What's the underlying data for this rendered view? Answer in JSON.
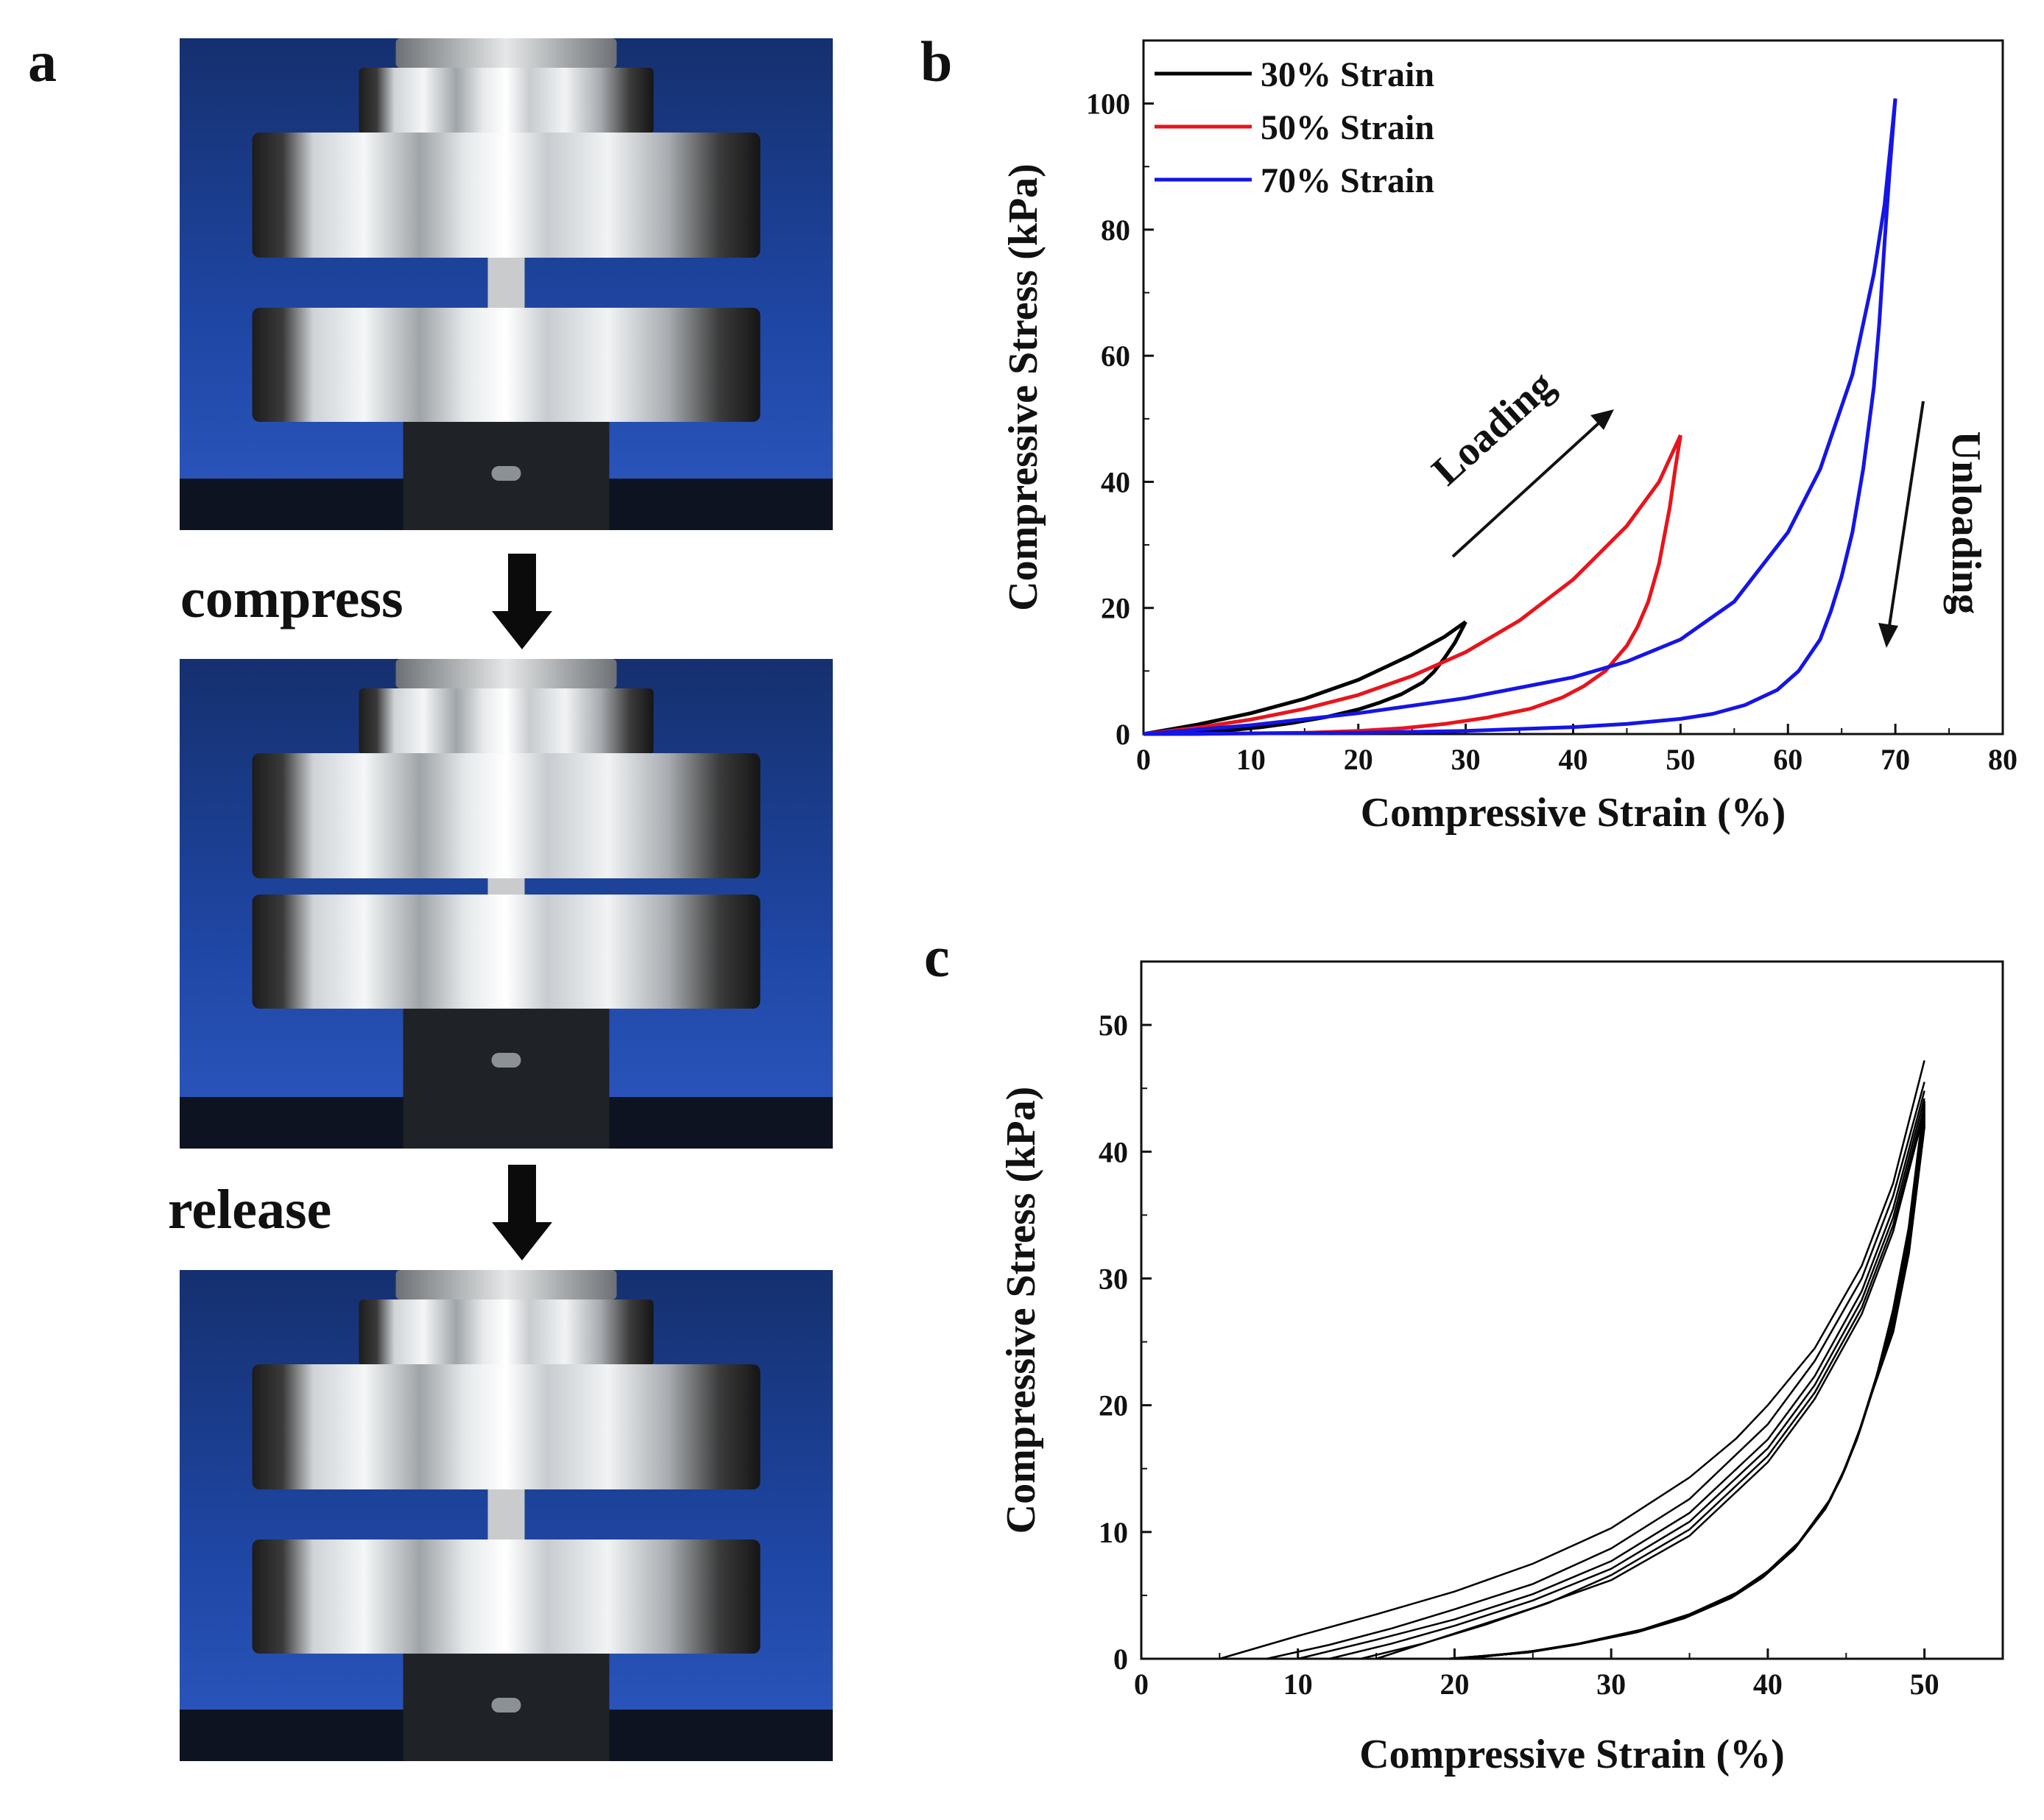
{
  "figure": {
    "panel_a": {
      "letter": "a",
      "step1_label": "compress",
      "step2_label": "release",
      "photos": [
        "initial-state-photo",
        "compressed-state-photo",
        "released-state-photo"
      ]
    },
    "panel_b": {
      "letter": "b"
    },
    "panel_c": {
      "letter": "c"
    }
  },
  "colors": {
    "photo_bg": "#1b3b86",
    "metal_light": "#e9ecef",
    "metal_dark": "#2b2b2b",
    "curve_30": "#000000",
    "curve_50": "#e8141c",
    "curve_70": "#1515e6",
    "cycle_curve": "#000000"
  },
  "chart_data": [
    {
      "id": "b",
      "type": "line",
      "xlabel": "Compressive Strain (%)",
      "ylabel": "Compressive Stress (kPa)",
      "xlim": [
        0,
        80
      ],
      "ylim": [
        0,
        110
      ],
      "xticks": [
        0,
        10,
        20,
        30,
        40,
        50,
        60,
        70,
        80
      ],
      "yticks": [
        0,
        20,
        40,
        60,
        80,
        100
      ],
      "legend_position": "top-left",
      "annotations": {
        "loading": "Loading",
        "unloading": "Unloading"
      },
      "series": [
        {
          "name": "30% Strain",
          "color": "#000000",
          "loading": {
            "x": [
              0,
              5,
              10,
              15,
              20,
              25,
              28,
              30
            ],
            "y": [
              0,
              1.5,
              3.3,
              5.6,
              8.6,
              12.6,
              15.4,
              17.8
            ]
          },
          "unloading": {
            "x": [
              30,
              29,
              28,
              27,
              26,
              24,
              22,
              20,
              17,
              14,
              11,
              8,
              5,
              2,
              0
            ],
            "y": [
              17.8,
              14.5,
              12,
              9.8,
              8.2,
              6.3,
              5,
              3.9,
              2.7,
              1.8,
              1.1,
              0.6,
              0.3,
              0.1,
              0
            ]
          }
        },
        {
          "name": "50% Strain",
          "color": "#e8141c",
          "loading": {
            "x": [
              0,
              5,
              10,
              15,
              20,
              25,
              30,
              35,
              40,
              45,
              48,
              50
            ],
            "y": [
              0,
              1,
              2.3,
              4,
              6.2,
              9.2,
              13,
              18,
              24.5,
              33,
              40,
              47.4
            ]
          },
          "unloading": {
            "x": [
              50,
              49.5,
              49,
              48,
              47,
              46,
              45,
              43,
              41,
              39,
              36,
              32,
              28,
              24,
              20,
              15,
              10,
              5,
              0
            ],
            "y": [
              47.4,
              42,
              36,
              27,
              21,
              17,
              14,
              10,
              7.6,
              5.8,
              4,
              2.6,
              1.6,
              0.9,
              0.5,
              0.2,
              0.1,
              0,
              0
            ]
          }
        },
        {
          "name": "70% Strain",
          "color": "#1515e6",
          "loading": {
            "x": [
              0,
              10,
              20,
              30,
              40,
              45,
              50,
              55,
              60,
              63,
              66,
              68,
              69,
              70
            ],
            "y": [
              0,
              1.4,
              3.3,
              5.7,
              9,
              11.5,
              15,
              21,
              32,
              42,
              57,
              73,
              84,
              100.8
            ]
          },
          "unloading": {
            "x": [
              70,
              69.5,
              69,
              68.5,
              68,
              67,
              66,
              65,
              64,
              63,
              61,
              59,
              56,
              53,
              50,
              45,
              40,
              30,
              20,
              10,
              0
            ],
            "y": [
              100.8,
              90,
              78,
              65,
              55,
              42,
              32,
              25,
              19.5,
              15,
              10,
              7,
              4.6,
              3.2,
              2.4,
              1.6,
              1.1,
              0.5,
              0.2,
              0.1,
              0
            ]
          }
        }
      ]
    },
    {
      "id": "c",
      "type": "line",
      "xlabel": "Compressive Strain (%)",
      "ylabel": "Compressive Stress (kPa)",
      "xlim": [
        0,
        55
      ],
      "ylim": [
        0,
        55
      ],
      "xticks": [
        0,
        10,
        20,
        30,
        40,
        50
      ],
      "yticks": [
        0,
        10,
        20,
        30,
        40,
        50
      ],
      "cycles": [
        {
          "loading": {
            "x": [
              5,
              10,
              15,
              20,
              25,
              30,
              35,
              38,
              40,
              43,
              46,
              48,
              50
            ],
            "y": [
              0,
              1.8,
              3.5,
              5.3,
              7.5,
              10.3,
              14.3,
              17.4,
              20,
              24.5,
              31,
              37.5,
              47.2
            ]
          }
        },
        {
          "loading": {
            "x": [
              8,
              12,
              16,
              20,
              25,
              30,
              35,
              40,
              43,
              46,
              48,
              50
            ],
            "y": [
              0,
              1.1,
              2.4,
              3.9,
              5.9,
              8.7,
              12.6,
              18.5,
              23.5,
              30,
              36.5,
              45.5
            ]
          }
        },
        {
          "loading": {
            "x": [
              10,
              15,
              20,
              25,
              30,
              35,
              40,
              43,
              46,
              48,
              50
            ],
            "y": [
              0,
              1.5,
              3.1,
              5.1,
              7.7,
              11.5,
              17.3,
              22.3,
              29,
              35.5,
              44.8
            ]
          }
        },
        {
          "loading": {
            "x": [
              12,
              16,
              20,
              25,
              30,
              35,
              40,
              43,
              46,
              48,
              50
            ],
            "y": [
              0,
              1.2,
              2.6,
              4.6,
              7.1,
              10.8,
              16.6,
              21.6,
              28.3,
              34.8,
              44.2
            ]
          }
        },
        {
          "loading": {
            "x": [
              14,
              18,
              22,
              26,
              30,
              35,
              40,
              43,
              46,
              48,
              50
            ],
            "y": [
              0,
              1.2,
              2.7,
              4.4,
              6.6,
              10.2,
              16,
              21,
              27.7,
              34.2,
              43.6
            ]
          }
        },
        {
          "loading": {
            "x": [
              15,
              20,
              25,
              30,
              35,
              40,
              43,
              46,
              48,
              50
            ],
            "y": [
              0,
              2.0,
              4.0,
              6.2,
              9.7,
              15.5,
              20.5,
              27.2,
              33.7,
              43.2
            ]
          }
        }
      ],
      "unloading_band": [
        {
          "x": [
            50,
            49.5,
            49,
            48,
            47,
            46,
            45,
            44,
            42,
            40,
            38,
            35,
            32,
            28,
            25,
            22,
            20
          ],
          "y": [
            44,
            39,
            34,
            27.5,
            22.5,
            18.5,
            15.2,
            12.6,
            9.2,
            6.9,
            5.2,
            3.5,
            2.3,
            1.2,
            0.6,
            0.2,
            0
          ]
        },
        {
          "x": [
            50,
            49.5,
            49,
            48,
            47,
            46,
            45,
            44,
            42,
            40,
            38,
            35,
            32,
            28,
            25,
            22,
            20
          ],
          "y": [
            42,
            37,
            32,
            25.8,
            21,
            17.2,
            14.2,
            11.8,
            8.6,
            6.4,
            4.8,
            3.2,
            2.1,
            1.1,
            0.5,
            0.2,
            0
          ]
        }
      ]
    }
  ]
}
